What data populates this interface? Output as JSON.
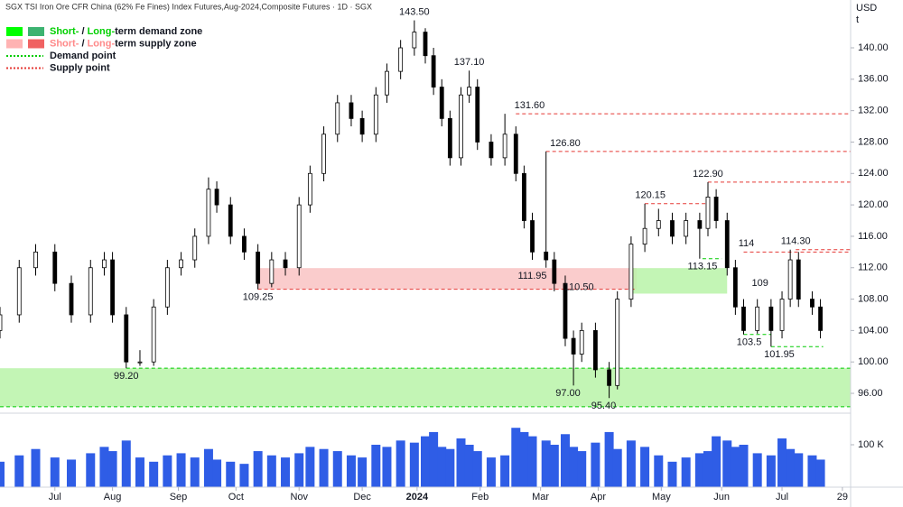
{
  "chart_data": {
    "type": "candlestick",
    "title": "SGX TSI Iron Ore CFR China (62% Fe Fines) Index Futures,Aug-2024,Composite Futures · 1D · SGX",
    "currency": "USD",
    "unit": "t",
    "x": [
      0,
      7,
      13,
      20,
      26,
      33,
      38,
      41,
      46,
      51,
      56,
      61,
      66,
      71,
      76,
      79,
      84,
      89,
      94,
      99,
      104,
      109,
      113,
      118,
      123,
      128,
      132,
      137,
      141,
      146,
      151,
      155,
      158,
      161,
      164,
      168,
      171,
      174,
      179,
      184,
      188,
      191,
      194,
      199,
      202,
      206,
      209,
      212,
      217,
      222,
      225,
      230,
      235,
      240,
      245,
      250,
      255,
      258,
      261,
      265,
      268,
      271,
      276,
      281,
      285,
      288,
      291,
      296,
      299
    ],
    "open": [
      104,
      106,
      112,
      114,
      110,
      106,
      112,
      113,
      106,
      100,
      100,
      107,
      112,
      113,
      116,
      122,
      120,
      116,
      114,
      110,
      113,
      112,
      120,
      124,
      129,
      133,
      131,
      129,
      134,
      137,
      140,
      142,
      139,
      135,
      131,
      126,
      134,
      135,
      128,
      126,
      129,
      124,
      118,
      114,
      113,
      110,
      103,
      101,
      104,
      99,
      97,
      108,
      115,
      117,
      118,
      116,
      118,
      117,
      121,
      118,
      112,
      107,
      104,
      107,
      104,
      108,
      113,
      108,
      107
    ],
    "high": [
      107,
      113,
      115,
      115,
      111,
      113,
      114,
      114,
      107,
      101.5,
      108,
      113,
      114,
      117,
      123.5,
      123,
      121,
      117,
      115,
      114,
      114,
      121,
      125,
      130,
      134,
      134,
      132,
      135,
      138,
      141,
      143.5,
      142.5,
      140,
      136,
      132,
      135,
      137.1,
      136,
      129,
      131.6,
      130,
      125,
      119,
      126.8,
      114,
      111,
      104,
      105,
      105,
      100,
      109,
      116,
      120.15,
      119.5,
      119,
      119,
      119,
      122.9,
      122,
      119,
      113,
      108,
      108,
      108,
      109,
      114.3,
      114,
      109,
      108
    ],
    "low": [
      103,
      105,
      111,
      109,
      105,
      105,
      111,
      105,
      99.2,
      99.5,
      99.5,
      106,
      111,
      112,
      115,
      119,
      115,
      113,
      109.25,
      109.5,
      111,
      111,
      119,
      123,
      128,
      130,
      128,
      128,
      133,
      136,
      139,
      138,
      134,
      130,
      125,
      125,
      133,
      127,
      125,
      125,
      123,
      117,
      113,
      112,
      109,
      102,
      97,
      100,
      98,
      95.4,
      96.5,
      107,
      114,
      116,
      115,
      115,
      113.15,
      116,
      117,
      111,
      106,
      103.5,
      103.6,
      101.95,
      103,
      107,
      107,
      106,
      103
    ],
    "close": [
      106,
      112,
      114,
      110,
      106,
      112,
      113,
      106,
      100,
      100,
      107,
      112,
      113,
      116,
      122,
      120,
      116,
      114,
      110,
      113,
      112,
      120,
      124,
      129,
      133,
      131,
      129,
      134,
      137,
      140,
      142,
      139,
      135,
      131,
      126,
      134,
      135,
      128,
      126,
      129,
      124,
      118,
      114,
      113,
      110,
      103,
      101,
      104,
      99,
      97,
      108,
      115,
      117,
      118,
      116,
      118,
      117,
      121,
      118,
      112,
      107,
      104,
      107,
      104,
      108,
      113,
      108,
      107,
      104
    ],
    "up_color": "#ffffff",
    "down_color": "#000000",
    "xlim": [
      0,
      310
    ],
    "xticks": [
      {
        "value": 20,
        "label": "Jul"
      },
      {
        "value": 41,
        "label": "Aug"
      },
      {
        "value": 65,
        "label": "Sep"
      },
      {
        "value": 86,
        "label": "Oct"
      },
      {
        "value": 109,
        "label": "Nov"
      },
      {
        "value": 132,
        "label": "Dec"
      },
      {
        "value": 152,
        "label": "2024"
      },
      {
        "value": 175,
        "label": "Feb"
      },
      {
        "value": 197,
        "label": "Mar"
      },
      {
        "value": 218,
        "label": "Apr"
      },
      {
        "value": 241,
        "label": "May"
      },
      {
        "value": 263,
        "label": "Jun"
      },
      {
        "value": 285,
        "label": "Jul"
      },
      {
        "value": 307,
        "label": "29"
      }
    ],
    "ylim": [
      93.82,
      146.09
    ],
    "yticks": [
      {
        "value": 96,
        "label": "96.00"
      },
      {
        "value": 100,
        "label": "100.00"
      },
      {
        "value": 104,
        "label": "104.00"
      },
      {
        "value": 108,
        "label": "108.00"
      },
      {
        "value": 112,
        "label": "112.00"
      },
      {
        "value": 116,
        "label": "116.00"
      },
      {
        "value": 120,
        "label": "120.00"
      },
      {
        "value": 124,
        "label": "124.00"
      },
      {
        "value": 128,
        "label": "128.00"
      },
      {
        "value": 132,
        "label": "132.00"
      },
      {
        "value": 136,
        "label": "136.00"
      },
      {
        "value": 140,
        "label": "140.00"
      }
    ],
    "volume": {
      "color": "#2f5de6",
      "values": [
        60000,
        75000,
        90000,
        70000,
        65000,
        80000,
        95000,
        85000,
        110000,
        70000,
        60000,
        75000,
        80000,
        70000,
        90000,
        65000,
        60000,
        55000,
        85000,
        75000,
        70000,
        80000,
        95000,
        90000,
        85000,
        75000,
        70000,
        100000,
        95000,
        110000,
        105000,
        120000,
        130000,
        95000,
        90000,
        115000,
        100000,
        85000,
        70000,
        75000,
        140000,
        130000,
        120000,
        110000,
        100000,
        125000,
        95000,
        85000,
        105000,
        130000,
        90000,
        110000,
        95000,
        75000,
        60000,
        70000,
        80000,
        85000,
        120000,
        110000,
        95000,
        100000,
        80000,
        75000,
        115000,
        90000,
        80000,
        75000,
        65000
      ],
      "ylim": [
        0,
        166000
      ],
      "yticks": [
        {
          "value": 100000,
          "label": "100 K"
        }
      ]
    },
    "legend": [
      {
        "parts": [
          "Short-",
          " / ",
          "Long-",
          "term demand zone"
        ],
        "swatches": [
          "#00ff00",
          "#3cb371"
        ],
        "accent": "#00d000"
      },
      {
        "parts": [
          "Short-",
          " / ",
          "Long-",
          "term supply zone"
        ],
        "swatches": [
          "#ffb3b3",
          "#f06262"
        ],
        "accent": "#ff8a8a"
      },
      {
        "parts": [
          "Demand point"
        ],
        "line": "#00cc00"
      },
      {
        "parts": [
          "Supply point"
        ],
        "line": "#e53935"
      }
    ],
    "zones": [
      {
        "x": [
          0,
          310
        ],
        "range": [
          94.3,
          99.2
        ],
        "color": "#b9f3a8"
      },
      {
        "x": [
          94,
          232
        ],
        "range": [
          109.25,
          111.95
        ],
        "color": "#f9c3c3"
      },
      {
        "x": [
          230,
          265
        ],
        "range": [
          108.7,
          111.95
        ],
        "color": "#b9f3a8"
      }
    ],
    "levels": [
      {
        "x": [
          188,
          310
        ],
        "value": 131.6,
        "color": "#e53935"
      },
      {
        "x": [
          199,
          310
        ],
        "value": 126.8,
        "color": "#e53935"
      },
      {
        "x": [
          258,
          310
        ],
        "value": 122.9,
        "color": "#e53935"
      },
      {
        "x": [
          235,
          258
        ],
        "value": 120.15,
        "color": "#e53935"
      },
      {
        "x": [
          290,
          310
        ],
        "value": 114.3,
        "color": "#e53935"
      },
      {
        "x": [
          271,
          310
        ],
        "value": 114,
        "color": "#e53935"
      },
      {
        "x": [
          256,
          263
        ],
        "value": 113.15,
        "color": "#00cc00"
      },
      {
        "x": [
          46,
          310
        ],
        "value": 99.2,
        "color": "#00cc00"
      },
      {
        "x": [
          0,
          310
        ],
        "value": 94.3,
        "color": "#00cc00"
      },
      {
        "x": [
          281,
          300
        ],
        "value": 101.95,
        "color": "#00cc00"
      },
      {
        "x": [
          271,
          281
        ],
        "value": 103.5,
        "color": "#00cc00"
      },
      {
        "x": [
          94,
          232
        ],
        "value": 109.25,
        "color": "#e53935"
      }
    ],
    "high_labels": [
      {
        "x": 151,
        "value": 143.5,
        "label": "143.50"
      },
      {
        "x": 171,
        "value": 137.1,
        "label": "137.10"
      },
      {
        "x": 193,
        "value": 131.6,
        "label": "131.60"
      },
      {
        "x": 206,
        "value": 126.8,
        "label": "126.80"
      },
      {
        "x": 258,
        "value": 122.9,
        "label": "122.90"
      },
      {
        "x": 237,
        "value": 120.15,
        "label": "120.15"
      },
      {
        "x": 290,
        "value": 114.3,
        "label": "114.30"
      },
      {
        "x": 272,
        "value": 114
      },
      {
        "x": 277,
        "value": 109
      }
    ],
    "low_labels": [
      {
        "x": 46,
        "value": 99.2,
        "label": "99.20"
      },
      {
        "x": 94,
        "value": 109.25,
        "label": "109.25"
      },
      {
        "x": 207,
        "value": 97,
        "label": "97.00"
      },
      {
        "x": 220,
        "value": 95.4,
        "label": "95.40"
      },
      {
        "x": 256,
        "value": 113.15,
        "label": "113.15"
      },
      {
        "x": 273,
        "value": 103.5,
        "label": "103.5"
      },
      {
        "x": 284,
        "value": 101.95,
        "label": "101.95"
      },
      {
        "x": 194,
        "value": 111.95,
        "label": "111.95"
      },
      {
        "x": 211,
        "value": 110.5,
        "label": "110.50"
      }
    ]
  }
}
